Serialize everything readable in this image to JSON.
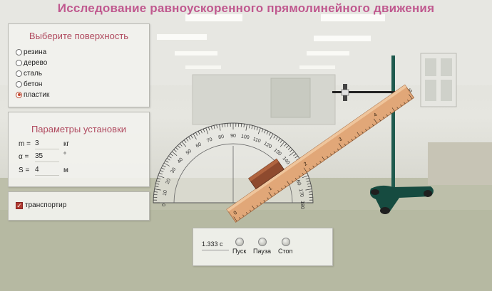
{
  "title": "Исследование равноускоренного прямолинейного движения",
  "surface_panel": {
    "heading": "Выберите поверхность",
    "options": [
      "резина",
      "дерево",
      "сталь",
      "бетон",
      "пластик"
    ],
    "selected": "пластик"
  },
  "params_panel": {
    "heading": "Параметры установки",
    "m": {
      "label": "m =",
      "value": "3",
      "unit": "кг"
    },
    "alpha": {
      "label": "α =",
      "value": "35",
      "unit": "°"
    },
    "s": {
      "label": "S =",
      "value": "4",
      "unit": "м"
    }
  },
  "protractor_toggle": {
    "label": "транспортир",
    "checked": true
  },
  "controls": {
    "time": "1.333 с",
    "start_label": "Пуск",
    "pause_label": "Пауза",
    "stop_label": "Стоп"
  },
  "protractor_labels": [
    "0",
    "10",
    "20",
    "30",
    "40",
    "50",
    "60",
    "70",
    "80",
    "90",
    "100",
    "110",
    "120",
    "130",
    "140",
    "150",
    "160",
    "170",
    "180"
  ],
  "ruler_labels": [
    "0",
    "1",
    "2",
    "3",
    "4",
    "5"
  ],
  "colors": {
    "accent": "#c0598f",
    "panel_heading": "#b04a5f",
    "stand": "#1f5a4e"
  }
}
